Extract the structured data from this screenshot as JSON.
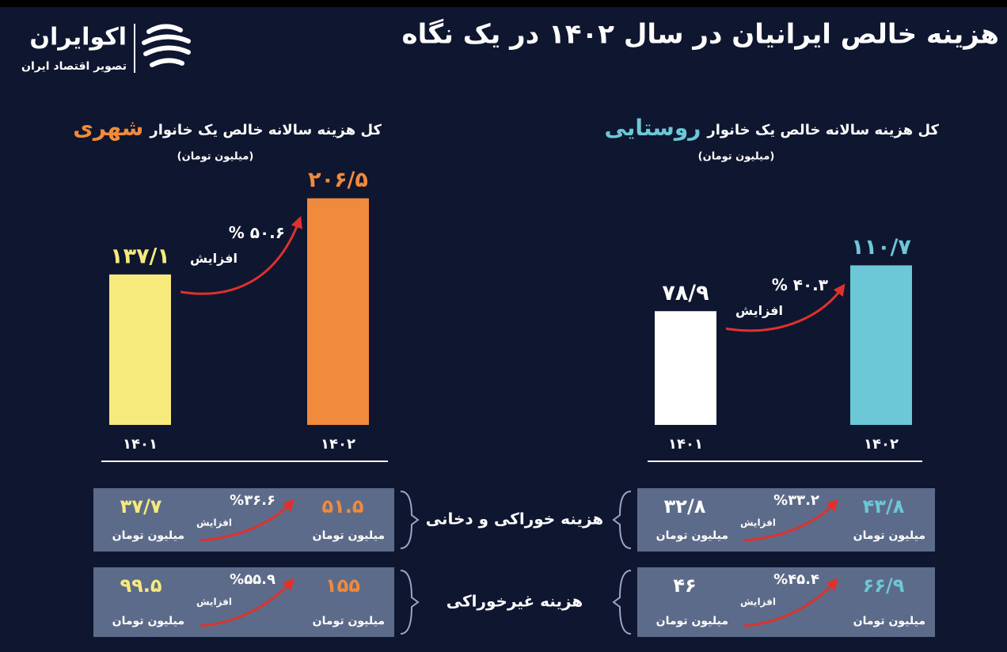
{
  "header": {
    "title": "هزینه خالص ایرانیان در سال ۱۴۰۲ در یک نگاه",
    "logo_name": "اکوایران",
    "logo_tagline": "تصویر اقتصاد ایران"
  },
  "chart_data": [
    {
      "type": "bar",
      "title": "کل هزینه سالانه خالص یک خانوار",
      "title_highlight": "شهری",
      "title_highlight_color": "#f08a3c",
      "subtitle": "(میلیون تومان)",
      "categories": [
        "۱۴۰۱",
        "۱۴۰۲"
      ],
      "values": [
        137.1,
        206.5
      ],
      "value_labels": [
        "۱۳۷/۱",
        "۲۰۶/۵"
      ],
      "colors": [
        "#f6ea7c",
        "#f08a3c"
      ],
      "ylim": [
        0,
        243
      ],
      "increase": "% ۵۰.۶",
      "increase_label": "افزایش"
    },
    {
      "type": "bar",
      "title": "کل هزینه سالانه خالص یک خانوار",
      "title_highlight": "روستایی",
      "title_highlight_color": "#6cc8d6",
      "subtitle": "(میلیون تومان)",
      "categories": [
        "۱۴۰۱",
        "۱۴۰۲"
      ],
      "values": [
        78.9,
        110.7
      ],
      "value_labels": [
        "۷۸/۹",
        "۱۱۰/۷"
      ],
      "colors": [
        "#ffffff",
        "#6cc8d6"
      ],
      "ylim": [
        0,
        185
      ],
      "increase": "% ۴۰.۳",
      "increase_label": "افزایش"
    }
  ],
  "comparison_rows": [
    {
      "label": "هزینه خوراکی و دخانی",
      "urban": {
        "value_1402": "۵۱.۵",
        "value_1401": "۳۷/۷",
        "increase": "%۳۶.۶",
        "increase_label": "افزایش",
        "unit": "میلیون تومان"
      },
      "rural": {
        "value_1402": "۴۳/۸",
        "value_1401": "۳۲/۸",
        "increase": "%۳۳.۲",
        "increase_label": "افزایش",
        "unit": "میلیون تومان"
      }
    },
    {
      "label": "هزینه غیرخوراکی",
      "urban": {
        "value_1402": "۱۵۵",
        "value_1401": "۹۹.۵",
        "increase": "%۵۵.۹",
        "increase_label": "افزایش",
        "unit": "میلیون تومان"
      },
      "rural": {
        "value_1402": "۶۶/۹",
        "value_1401": "۴۶",
        "increase": "%۴۵.۴",
        "increase_label": "افزایش",
        "unit": "میلیون تومان"
      }
    }
  ]
}
